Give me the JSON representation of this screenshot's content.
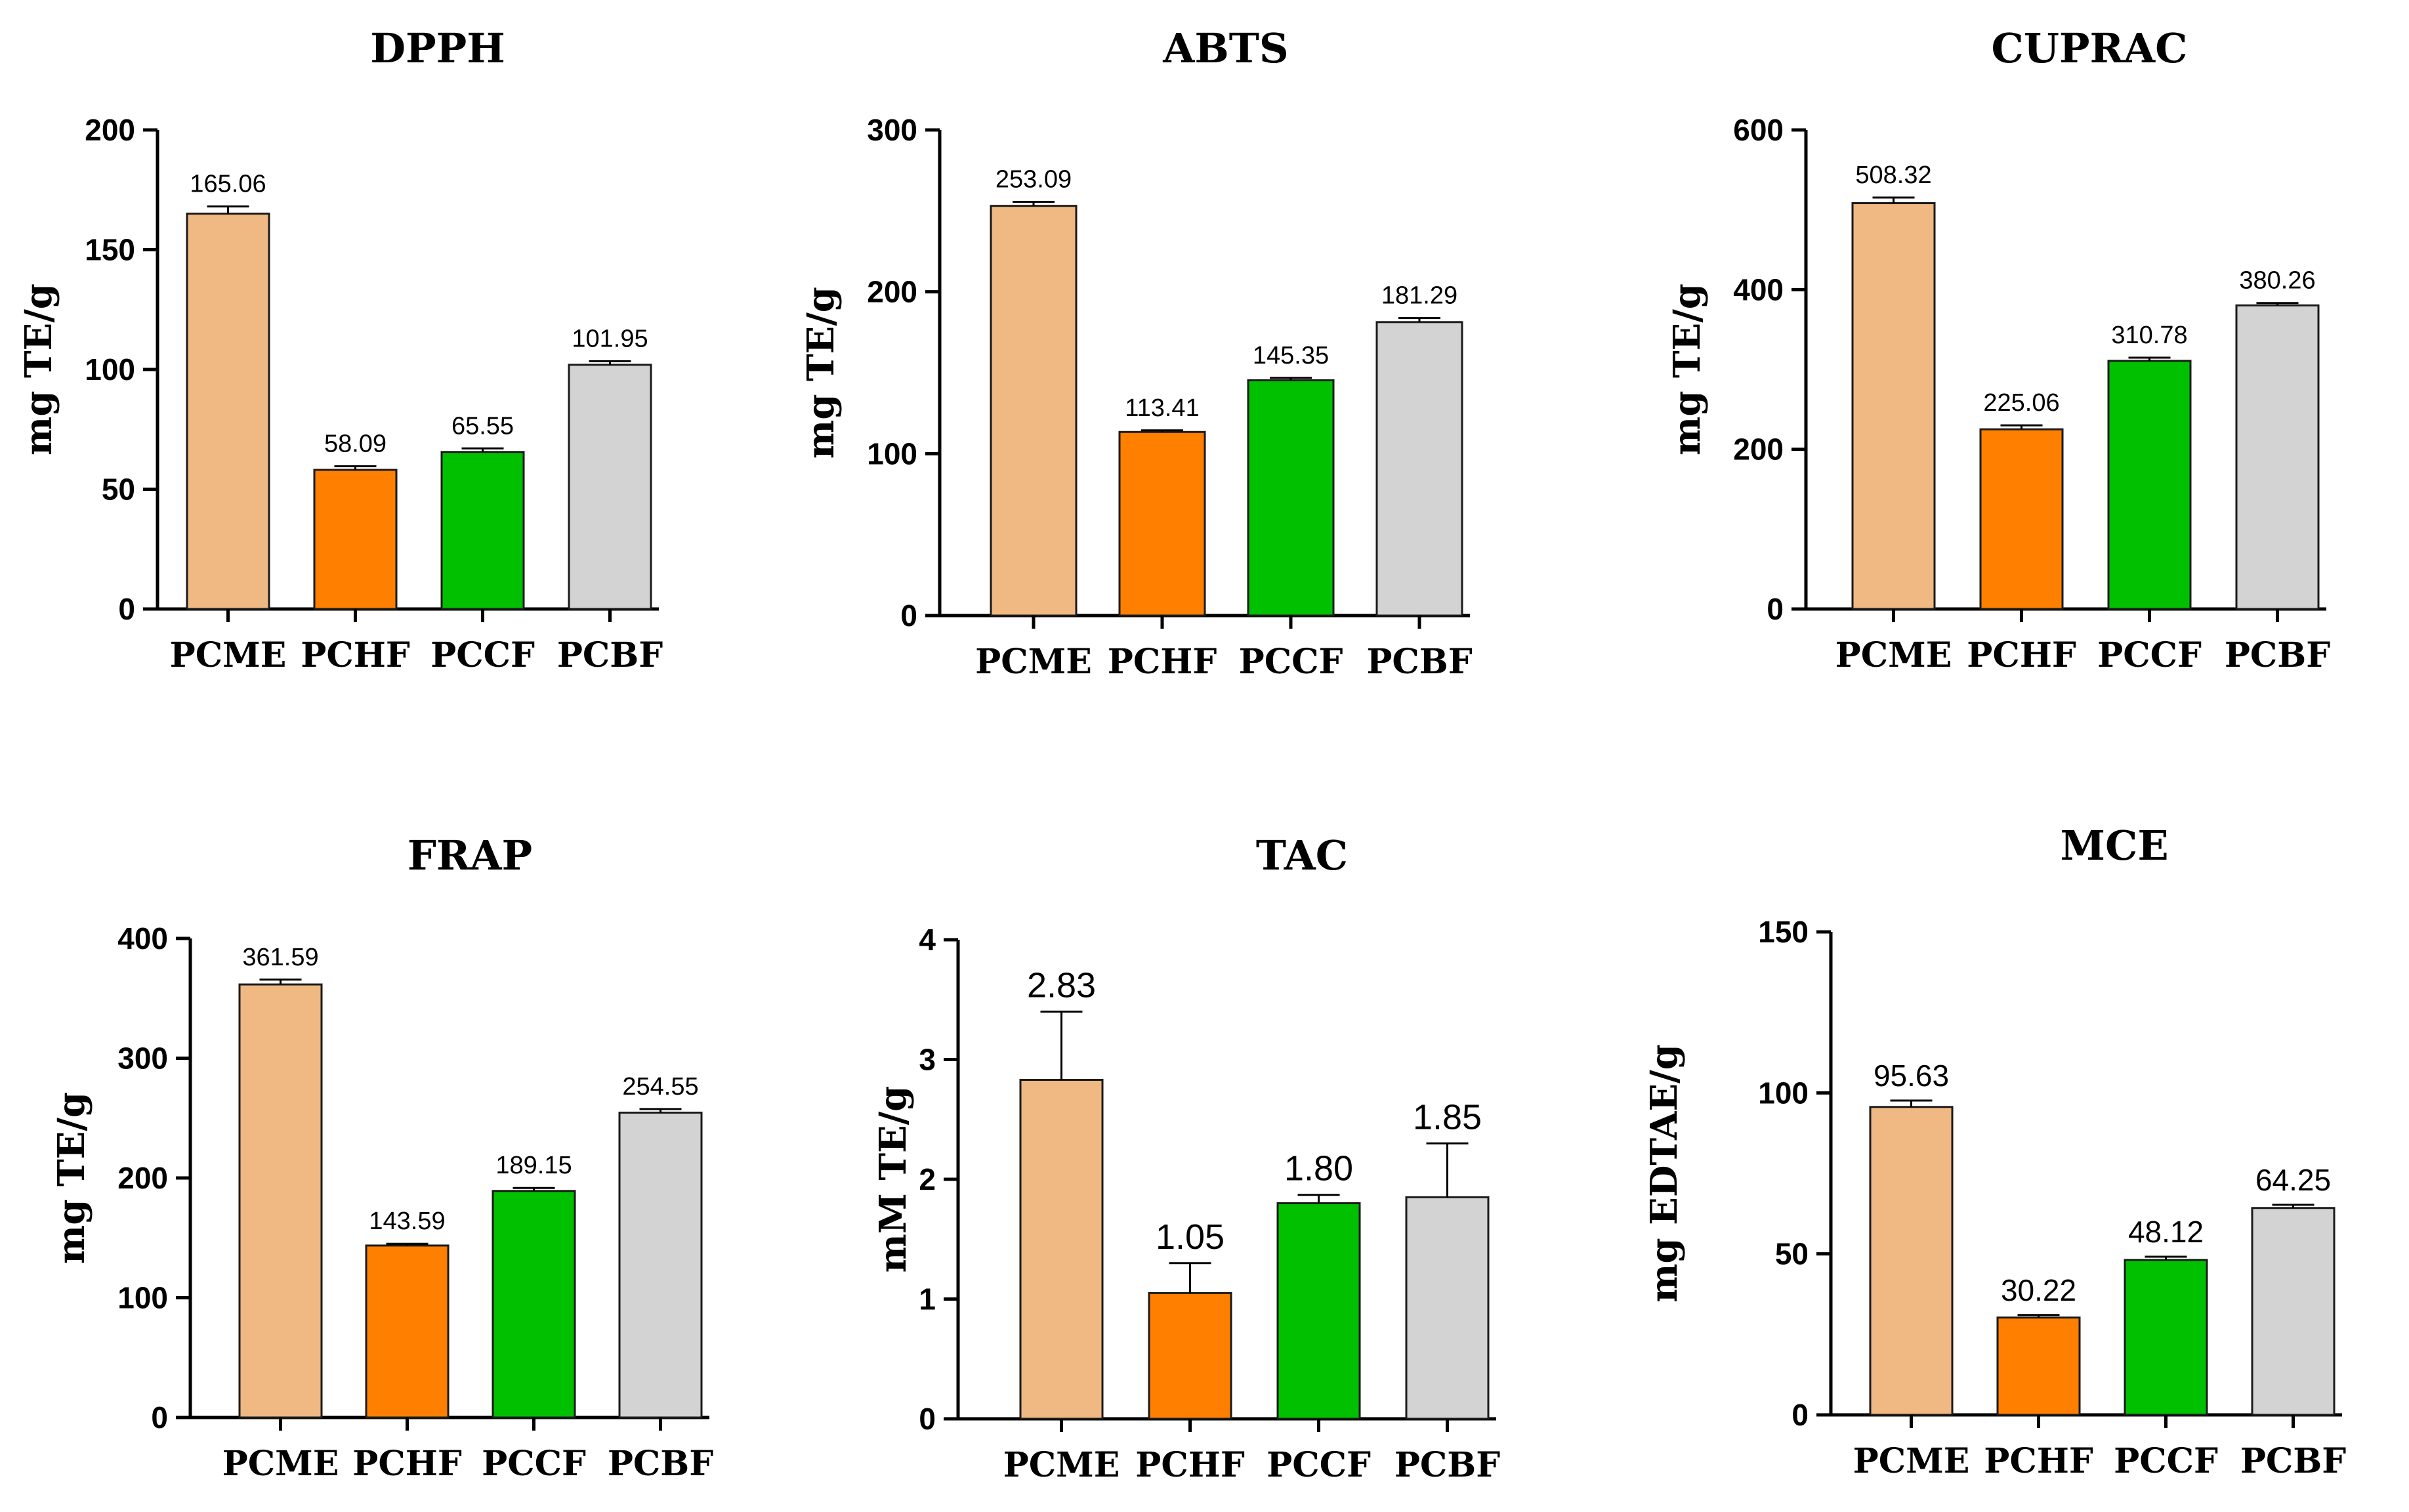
{
  "chart_data": [
    {
      "type": "bar",
      "title": "DPPH",
      "ylabel": "mg TE/g",
      "categories": [
        "PCME",
        "PCHF",
        "PCCF",
        "PCBF"
      ],
      "values": [
        165.06,
        58.09,
        65.55,
        101.95
      ],
      "value_labels": [
        "165.06",
        "58.09",
        "65.55",
        "101.95"
      ],
      "error": [
        3,
        1.5,
        1.5,
        1.5
      ],
      "ylim": [
        0,
        200
      ],
      "yticks": [
        0,
        50,
        100,
        150,
        200
      ]
    },
    {
      "type": "bar",
      "title": "ABTS",
      "ylabel": "mg TE/g",
      "categories": [
        "PCME",
        "PCHF",
        "PCCF",
        "PCBF"
      ],
      "values": [
        253.09,
        113.41,
        145.35,
        181.29
      ],
      "value_labels": [
        "253.09",
        "113.41",
        "145.35",
        "181.29"
      ],
      "error": [
        2.5,
        1.0,
        1.5,
        2.5
      ],
      "ylim": [
        0,
        300
      ],
      "yticks": [
        0,
        100,
        200,
        300
      ]
    },
    {
      "type": "bar",
      "title": "CUPRAC",
      "ylabel": "mg TE/g",
      "categories": [
        "PCME",
        "PCHF",
        "PCCF",
        "PCBF"
      ],
      "values": [
        508.32,
        225.06,
        310.78,
        380.26
      ],
      "value_labels": [
        "508.32",
        "225.06",
        "310.78",
        "380.26"
      ],
      "error": [
        7,
        5,
        4,
        3
      ],
      "ylim": [
        0,
        600
      ],
      "yticks": [
        0,
        200,
        400,
        600
      ]
    },
    {
      "type": "bar",
      "title": "FRAP",
      "ylabel": "mg TE/g",
      "categories": [
        "PCME",
        "PCHF",
        "PCCF",
        "PCBF"
      ],
      "values": [
        361.59,
        143.59,
        189.15,
        254.55
      ],
      "value_labels": [
        "361.59",
        "143.59",
        "189.15",
        "254.55"
      ],
      "error": [
        4,
        1.5,
        2.5,
        3
      ],
      "ylim": [
        0,
        400
      ],
      "yticks": [
        0,
        100,
        200,
        300,
        400
      ]
    },
    {
      "type": "bar",
      "title": "TAC",
      "ylabel": "mM TE/g",
      "categories": [
        "PCME",
        "PCHF",
        "PCCF",
        "PCBF"
      ],
      "values": [
        2.83,
        1.05,
        1.8,
        1.85
      ],
      "value_labels": [
        "2.83",
        "1.05",
        "1.80",
        "1.85"
      ],
      "error": [
        0.57,
        0.25,
        0.07,
        0.45
      ],
      "ylim": [
        0,
        4
      ],
      "yticks": [
        0,
        1,
        2,
        3,
        4
      ]
    },
    {
      "type": "bar",
      "title": "MCE",
      "ylabel": "mg EDTAE/g",
      "categories": [
        "PCME",
        "PCHF",
        "PCCF",
        "PCBF"
      ],
      "values": [
        95.63,
        30.22,
        48.12,
        64.25
      ],
      "value_labels": [
        "95.63",
        "30.22",
        "48.12",
        "64.25"
      ],
      "error": [
        2,
        0.8,
        1,
        1
      ],
      "ylim": [
        0,
        150
      ],
      "yticks": [
        0,
        50,
        100,
        150
      ]
    }
  ],
  "colors": {
    "PCME": "#F0B882",
    "PCHF": "#FF7F00",
    "PCCF": "#00C000",
    "PCBF": "#D3D3D3"
  }
}
